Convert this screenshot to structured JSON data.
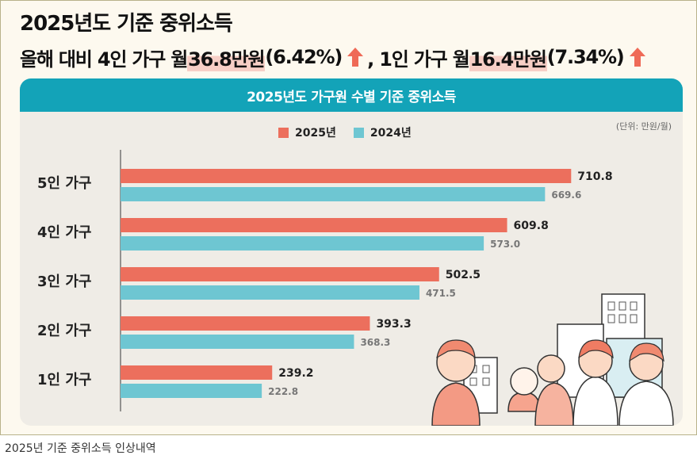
{
  "headline": {
    "line1": "2025년도 기준 중위소득",
    "line2_pre": "올해 대비 4인 가구 월 ",
    "line2_hl1": "36.8만원",
    "line2_mid1": "(6.42%)",
    "line2_mid2": ", 1인 가구 월 ",
    "line2_hl2": "16.4만원",
    "line2_end": "(7.34%)"
  },
  "chart_data": {
    "type": "bar",
    "orientation": "horizontal",
    "title": "2025년도 가구원 수별 기준 중위소득",
    "unit_label": "(단위: 만원/월)",
    "categories": [
      "5인 가구",
      "4인 가구",
      "3인 가구",
      "2인 가구",
      "1인 가구"
    ],
    "series": [
      {
        "name": "2025년",
        "color": "#ec6f5d",
        "values": [
          710.8,
          609.8,
          502.5,
          393.3,
          239.2
        ],
        "labels": [
          "710.8",
          "609.8",
          "502.5",
          "393.3",
          "239.2"
        ]
      },
      {
        "name": "2024년",
        "color": "#6ec6d2",
        "values": [
          669.6,
          573.0,
          471.5,
          368.3,
          222.8
        ],
        "labels": [
          "669.6",
          "573.0",
          "471.5",
          "368.3",
          "222.8"
        ]
      }
    ],
    "xlim": [
      0,
      800
    ]
  },
  "caption": "2025년 기준 중위소득 인상내역",
  "colors": {
    "accent_red": "#ec6f5d",
    "accent_teal": "#13a3b8",
    "arrow": "#ef6a57"
  }
}
